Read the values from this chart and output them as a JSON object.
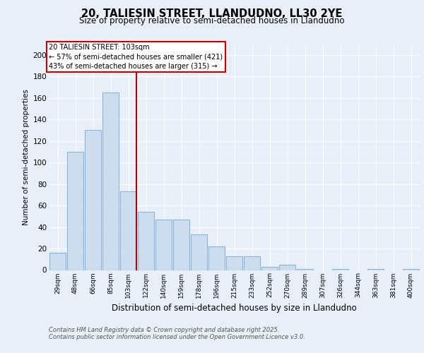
{
  "title1": "20, TALIESIN STREET, LLANDUDNO, LL30 2YE",
  "title2": "Size of property relative to semi-detached houses in Llandudno",
  "xlabel": "Distribution of semi-detached houses by size in Llandudno",
  "ylabel": "Number of semi-detached properties",
  "categories": [
    "29sqm",
    "48sqm",
    "66sqm",
    "85sqm",
    "103sqm",
    "122sqm",
    "140sqm",
    "159sqm",
    "178sqm",
    "196sqm",
    "215sqm",
    "233sqm",
    "252sqm",
    "270sqm",
    "289sqm",
    "307sqm",
    "326sqm",
    "344sqm",
    "363sqm",
    "381sqm",
    "400sqm"
  ],
  "values": [
    16,
    110,
    130,
    165,
    73,
    54,
    47,
    47,
    33,
    22,
    13,
    13,
    3,
    5,
    1,
    0,
    1,
    0,
    1,
    0,
    1
  ],
  "bar_color": "#ccddf0",
  "bar_edge_color": "#8ab4d8",
  "highlight_index": 4,
  "annotation_title": "20 TALIESIN STREET: 103sqm",
  "annotation_line1": "← 57% of semi-detached houses are smaller (421)",
  "annotation_line2": "43% of semi-detached houses are larger (315) →",
  "footer1": "Contains HM Land Registry data © Crown copyright and database right 2025.",
  "footer2": "Contains public sector information licensed under the Open Government Licence v3.0.",
  "ylim": [
    0,
    210
  ],
  "yticks": [
    0,
    20,
    40,
    60,
    80,
    100,
    120,
    140,
    160,
    180,
    200
  ],
  "bg_color": "#e8eff8",
  "plot_bg_color": "#e8eff8",
  "grid_color": "#ffffff",
  "vline_color": "#bb0000"
}
